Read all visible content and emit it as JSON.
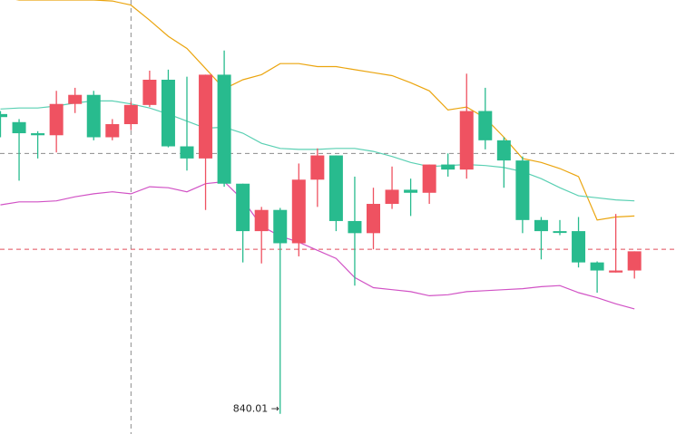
{
  "chart_data": {
    "type": "candlestick",
    "title": "",
    "xlabel": "",
    "ylabel": "",
    "ylim": [
      838,
      881
    ],
    "grid": false,
    "crosshair": {
      "x_index": 7
    },
    "reference_lines": [
      865.8,
      856.3
    ],
    "low_marker": {
      "label": "840.01 →",
      "index": 15,
      "value": 840.01
    },
    "candles": [
      {
        "open": 869.7,
        "close": 869.4,
        "high": 870.0,
        "low": 867.4
      },
      {
        "open": 868.9,
        "close": 867.8,
        "high": 869.2,
        "low": 863.1
      },
      {
        "open": 867.8,
        "close": 867.6,
        "high": 868.0,
        "low": 865.3
      },
      {
        "open": 867.6,
        "close": 870.7,
        "high": 872.0,
        "low": 865.9
      },
      {
        "open": 870.7,
        "close": 871.6,
        "high": 872.3,
        "low": 869.8
      },
      {
        "open": 871.6,
        "close": 867.4,
        "high": 872.0,
        "low": 867.1
      },
      {
        "open": 867.4,
        "close": 868.7,
        "high": 869.2,
        "low": 867.1
      },
      {
        "open": 868.7,
        "close": 870.6,
        "high": 870.9,
        "low": 868.1
      },
      {
        "open": 870.6,
        "close": 873.1,
        "high": 874.0,
        "low": 870.4
      },
      {
        "open": 873.1,
        "close": 866.5,
        "high": 874.1,
        "low": 866.4
      },
      {
        "open": 866.5,
        "close": 865.3,
        "high": 873.4,
        "low": 864.1
      },
      {
        "open": 865.3,
        "close": 873.6,
        "high": 873.6,
        "low": 860.2
      },
      {
        "open": 873.6,
        "close": 862.8,
        "high": 876.0,
        "low": 862.5
      },
      {
        "open": 862.8,
        "close": 858.1,
        "high": 862.8,
        "low": 855.0
      },
      {
        "open": 858.1,
        "close": 860.2,
        "high": 860.5,
        "low": 854.9
      },
      {
        "open": 860.2,
        "close": 856.9,
        "high": 860.4,
        "low": 840.0
      },
      {
        "open": 856.9,
        "close": 863.2,
        "high": 864.8,
        "low": 855.6
      },
      {
        "open": 863.2,
        "close": 865.6,
        "high": 866.3,
        "low": 860.5
      },
      {
        "open": 865.6,
        "close": 859.1,
        "high": 865.6,
        "low": 858.1
      },
      {
        "open": 859.1,
        "close": 857.9,
        "high": 863.5,
        "low": 852.7
      },
      {
        "open": 857.9,
        "close": 860.8,
        "high": 862.4,
        "low": 856.3
      },
      {
        "open": 860.8,
        "close": 862.2,
        "high": 864.5,
        "low": 860.3
      },
      {
        "open": 862.2,
        "close": 861.9,
        "high": 863.3,
        "low": 859.6
      },
      {
        "open": 861.9,
        "close": 864.7,
        "high": 864.7,
        "low": 860.8
      },
      {
        "open": 864.7,
        "close": 864.2,
        "high": 865.8,
        "low": 863.5
      },
      {
        "open": 864.2,
        "close": 870.0,
        "high": 873.7,
        "low": 863.3
      },
      {
        "open": 870.0,
        "close": 867.1,
        "high": 872.3,
        "low": 866.2
      },
      {
        "open": 867.1,
        "close": 865.1,
        "high": 867.4,
        "low": 862.4
      },
      {
        "open": 865.1,
        "close": 859.2,
        "high": 865.5,
        "low": 857.9
      },
      {
        "open": 859.2,
        "close": 858.1,
        "high": 859.5,
        "low": 855.3
      },
      {
        "open": 858.1,
        "close": 858.0,
        "high": 859.2,
        "low": 857.7
      },
      {
        "open": 858.1,
        "close": 855.0,
        "high": 859.5,
        "low": 854.5
      },
      {
        "open": 855.0,
        "close": 854.2,
        "high": 855.1,
        "low": 852.0
      },
      {
        "open": 854.0,
        "close": 854.2,
        "high": 859.8,
        "low": 854.0
      },
      {
        "open": 854.2,
        "close": 856.1,
        "high": 856.1,
        "low": 853.4
      }
    ],
    "series": [
      {
        "values": [
          881.3,
          881.0,
          881.0,
          881.0,
          881.0,
          881.0,
          880.9,
          880.5,
          879.0,
          877.4,
          876.2,
          874.2,
          872.2,
          873.1,
          873.6,
          874.7,
          874.7,
          874.4,
          874.4,
          874.1,
          873.8,
          873.5,
          872.8,
          872.0,
          870.1,
          870.4,
          869.3,
          867.4,
          865.3,
          864.9,
          864.3,
          863.5,
          859.2,
          859.5,
          859.6
        ]
      },
      {
        "values": [
          870.2,
          870.3,
          870.3,
          870.5,
          870.8,
          871.0,
          871.0,
          870.7,
          870.3,
          869.7,
          869.0,
          868.3,
          868.4,
          867.8,
          866.8,
          866.3,
          866.2,
          866.2,
          866.3,
          866.3,
          866.0,
          865.5,
          864.9,
          864.5,
          864.6,
          864.7,
          864.6,
          864.4,
          864.0,
          863.3,
          862.4,
          861.6,
          861.4,
          861.2,
          861.1
        ]
      },
      {
        "values": [
          860.7,
          861.0,
          861.0,
          861.1,
          861.5,
          861.8,
          862.0,
          861.8,
          862.5,
          862.4,
          862.0,
          862.8,
          863.0,
          861.2,
          858.6,
          857.6,
          857.0,
          856.2,
          855.4,
          853.5,
          852.5,
          852.3,
          852.1,
          851.7,
          851.8,
          852.1,
          852.2,
          852.3,
          852.4,
          852.6,
          852.7,
          852.0,
          851.5,
          850.9,
          850.4
        ]
      }
    ],
    "colors": {
      "up": "#EF5261",
      "down": "#28BB8E",
      "band_upper": "#EBA50F",
      "band_middle": "#5AD0B3",
      "band_lower": "#D152C5",
      "crosshair": "#8C8C8C",
      "ref_line_upper": "#8C8C8C",
      "ref_line_lower": "#E24C5B"
    }
  }
}
